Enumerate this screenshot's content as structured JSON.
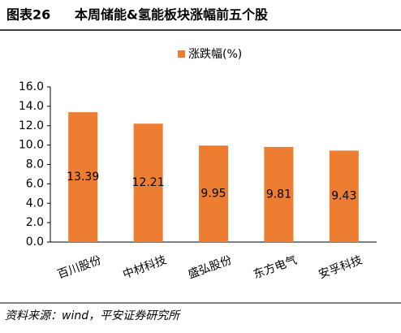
{
  "chart_data": {
    "type": "bar",
    "figure_label": "图表26",
    "title": "本周储能&氢能板块涨幅前五个股",
    "categories": [
      "百川股份",
      "中材科技",
      "盛弘股份",
      "东方电气",
      "安孚科技"
    ],
    "series": [
      {
        "name": "涨跌幅(%)",
        "color": "#ed7d31",
        "values": [
          13.39,
          12.21,
          9.95,
          9.81,
          9.43
        ]
      }
    ],
    "ylim": [
      0,
      16
    ],
    "yticks": [
      {
        "value": 0,
        "label": "0.0"
      },
      {
        "value": 2,
        "label": "2.0"
      },
      {
        "value": 4,
        "label": "4.0"
      },
      {
        "value": 6,
        "label": "6.0"
      },
      {
        "value": 8,
        "label": "8.0"
      },
      {
        "value": 10,
        "label": "10.0"
      },
      {
        "value": 12,
        "label": "12.0"
      },
      {
        "value": 14,
        "label": "14.0"
      },
      {
        "value": 16,
        "label": "16.0"
      }
    ],
    "grid": false,
    "legend": "top",
    "source": "资料来源：wind，平安证券研究所"
  }
}
